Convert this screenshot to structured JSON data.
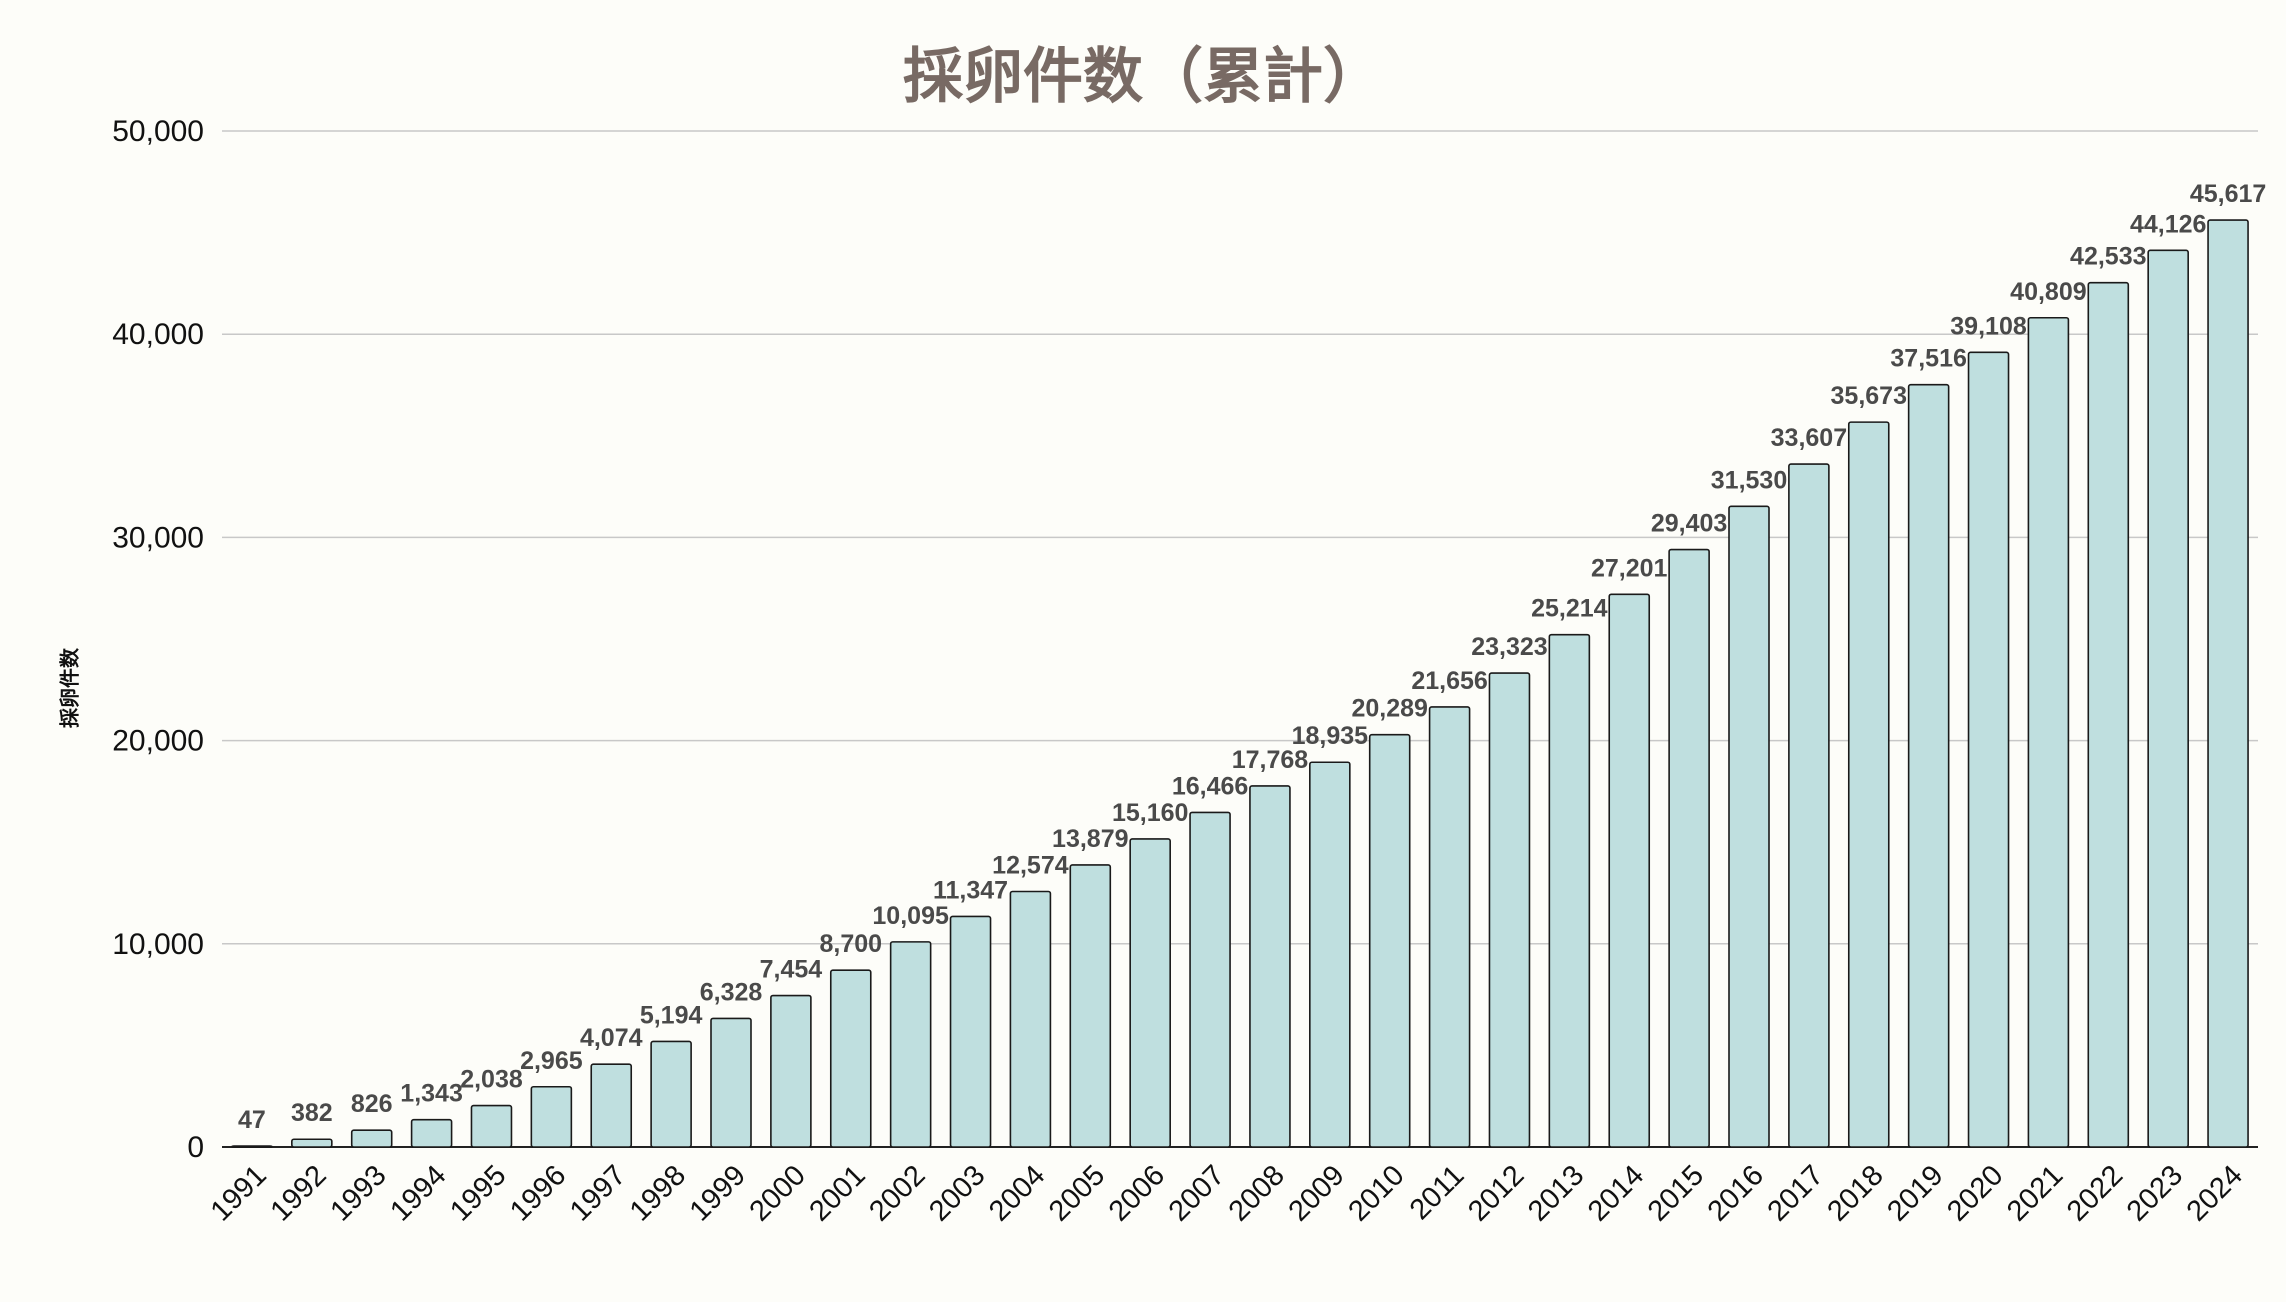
{
  "chart_data": {
    "type": "bar",
    "title": "採卵件数（累計）",
    "xlabel": "",
    "ylabel": "採卵件数",
    "categories": [
      "1991",
      "1992",
      "1993",
      "1994",
      "1995",
      "1996",
      "1997",
      "1998",
      "1999",
      "2000",
      "2001",
      "2002",
      "2003",
      "2004",
      "2005",
      "2006",
      "2007",
      "2008",
      "2009",
      "2010",
      "2011",
      "2012",
      "2013",
      "2014",
      "2015",
      "2016",
      "2017",
      "2018",
      "2019",
      "2020",
      "2021",
      "2022",
      "2023",
      "2024"
    ],
    "values": [
      47,
      382,
      826,
      1343,
      2038,
      2965,
      4074,
      5194,
      6328,
      7454,
      8700,
      10095,
      11347,
      12574,
      13879,
      15160,
      16466,
      17768,
      18935,
      20289,
      21656,
      23323,
      25214,
      27201,
      29403,
      31530,
      33607,
      35673,
      37516,
      39108,
      40809,
      42533,
      44126,
      45617
    ],
    "data_labels": [
      "47",
      "382",
      "826",
      "1,343",
      "2,038",
      "2,965",
      "4,074",
      "5,194",
      "6,328",
      "7,454",
      "8,700",
      "10,095",
      "11,347",
      "12,574",
      "13,879",
      "15,160",
      "16,466",
      "17,768",
      "18,935",
      "20,289",
      "21,656",
      "23,323",
      "25,214",
      "27,201",
      "29,403",
      "31,530",
      "33,607",
      "35,673",
      "37,516",
      "39,108",
      "40,809",
      "42,533",
      "44,126",
      "45,617"
    ],
    "ylim": [
      0,
      50000
    ],
    "yticks": [
      0,
      10000,
      20000,
      30000,
      40000,
      50000
    ],
    "ytick_labels": [
      "0",
      "10,000",
      "20,000",
      "30,000",
      "40,000",
      "50,000"
    ],
    "grid": true,
    "legend": "none",
    "colors": {
      "bar_fill": "#bfdfdf",
      "bar_stroke": "#1a1a1a",
      "grid": "#c8c8c8",
      "title": "#786a64",
      "background": "#fdfdf9"
    }
  }
}
